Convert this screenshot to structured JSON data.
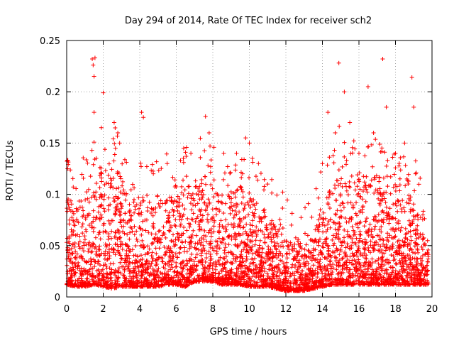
{
  "chart_data": {
    "type": "scatter",
    "title": "Day 294 of 2014, Rate Of TEC Index for receiver sch2",
    "xlabel": "GPS time / hours",
    "ylabel": "ROTI / TECUs",
    "xlim": [
      0,
      20
    ],
    "ylim": [
      0,
      0.25
    ],
    "x_ticks": [
      0,
      2,
      4,
      6,
      8,
      10,
      12,
      14,
      16,
      18,
      20
    ],
    "y_ticks": [
      0,
      0.05,
      0.1,
      0.15,
      0.2,
      0.25
    ],
    "x_tick_labels": [
      "0",
      "2",
      "4",
      "6",
      "8",
      "10",
      "12",
      "14",
      "16",
      "18",
      "20"
    ],
    "y_tick_labels": [
      "0",
      "0.05",
      "0.1",
      "0.15",
      "0.2",
      "0.25"
    ],
    "grid": true,
    "marker": "+",
    "marker_color": "#ff0000",
    "data_span_hours": [
      0,
      19.8
    ],
    "representative_points": {
      "x": [
        0.05,
        0.1,
        1.4,
        1.45,
        1.5,
        1.5,
        1.55,
        1.9,
        2.0,
        2.6,
        2.8,
        2.9,
        4.1,
        4.2,
        5.5,
        6.8,
        7.6,
        7.8,
        8.6,
        9.3,
        9.8,
        10.0,
        10.5,
        11.0,
        12.3,
        13.2,
        14.0,
        14.3,
        14.7,
        14.9,
        15.2,
        15.5,
        16.0,
        16.5,
        16.8,
        17.3,
        17.5,
        18.0,
        18.5,
        18.9,
        19.0,
        19.5
      ],
      "y": [
        0.125,
        0.09,
        0.232,
        0.226,
        0.215,
        0.18,
        0.233,
        0.165,
        0.199,
        0.17,
        0.16,
        0.15,
        0.18,
        0.175,
        0.13,
        0.14,
        0.176,
        0.16,
        0.14,
        0.14,
        0.155,
        0.15,
        0.13,
        0.11,
        0.07,
        0.06,
        0.13,
        0.18,
        0.16,
        0.228,
        0.2,
        0.17,
        0.14,
        0.205,
        0.16,
        0.232,
        0.185,
        0.14,
        0.15,
        0.214,
        0.185,
        0.08
      ]
    },
    "envelope": {
      "hours": [
        0,
        0.5,
        1,
        1.5,
        2,
        2.5,
        3,
        3.5,
        4,
        4.5,
        5,
        5.5,
        6,
        6.5,
        7,
        7.5,
        8,
        8.5,
        9,
        9.5,
        10,
        10.5,
        11,
        11.5,
        12,
        12.5,
        13,
        13.5,
        14,
        14.5,
        15,
        15.5,
        16,
        16.5,
        17,
        17.5,
        18,
        18.5,
        19,
        19.5,
        19.8
      ],
      "typical_max": [
        0.1,
        0.09,
        0.1,
        0.14,
        0.13,
        0.13,
        0.12,
        0.09,
        0.1,
        0.09,
        0.1,
        0.1,
        0.1,
        0.11,
        0.11,
        0.12,
        0.11,
        0.1,
        0.1,
        0.11,
        0.1,
        0.09,
        0.08,
        0.07,
        0.06,
        0.06,
        0.05,
        0.06,
        0.09,
        0.11,
        0.13,
        0.12,
        0.12,
        0.11,
        0.12,
        0.11,
        0.1,
        0.1,
        0.1,
        0.07,
        0.05
      ],
      "typical_min": [
        0.012,
        0.01,
        0.01,
        0.012,
        0.01,
        0.008,
        0.01,
        0.01,
        0.01,
        0.01,
        0.01,
        0.012,
        0.012,
        0.01,
        0.015,
        0.015,
        0.015,
        0.012,
        0.012,
        0.012,
        0.01,
        0.01,
        0.01,
        0.008,
        0.006,
        0.006,
        0.006,
        0.008,
        0.01,
        0.012,
        0.012,
        0.012,
        0.012,
        0.012,
        0.012,
        0.012,
        0.012,
        0.012,
        0.012,
        0.012,
        0.012
      ]
    }
  }
}
